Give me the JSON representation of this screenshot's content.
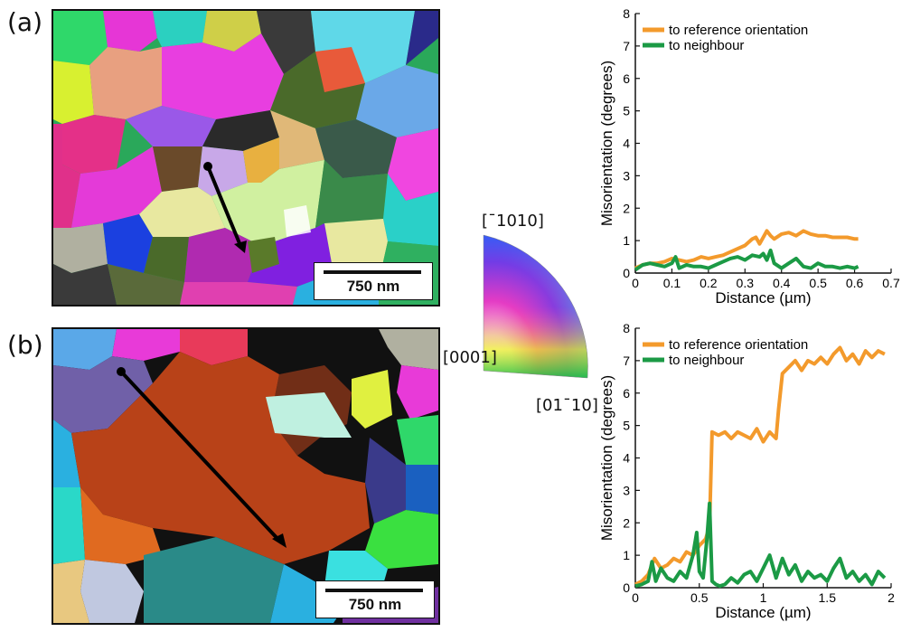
{
  "panels": {
    "a": {
      "label": "(a)",
      "scale_text": "750 nm"
    },
    "b": {
      "label": "(b)",
      "scale_text": "750 nm"
    }
  },
  "ipf_key": {
    "top": "[¯1010]",
    "left": "[0001]",
    "right": "[01¯10]"
  },
  "colors": {
    "reference": "#f39a2c",
    "neighbour": "#1b9a45"
  },
  "chart_data": [
    {
      "type": "line",
      "ylabel": "Misorientation (degrees)",
      "xlabel": "Distance (µm)",
      "xlim": [
        0,
        0.7
      ],
      "ylim": [
        0,
        8
      ],
      "xticks": [
        "0",
        "0.1",
        "0.2",
        "0.3",
        "0.4",
        "0.5",
        "0.6",
        "0.7"
      ],
      "yticks": [
        "0",
        "1",
        "2",
        "3",
        "4",
        "5",
        "6",
        "7",
        "8"
      ],
      "legend": [
        "to reference orientation",
        "to neighbour"
      ],
      "legend_position": "top-left",
      "series": [
        {
          "name": "to reference orientation",
          "x": [
            0,
            0.02,
            0.04,
            0.06,
            0.08,
            0.1,
            0.12,
            0.14,
            0.16,
            0.18,
            0.2,
            0.22,
            0.24,
            0.26,
            0.28,
            0.3,
            0.32,
            0.33,
            0.34,
            0.36,
            0.37,
            0.38,
            0.4,
            0.42,
            0.44,
            0.46,
            0.48,
            0.5,
            0.52,
            0.54,
            0.56,
            0.58,
            0.6,
            0.61
          ],
          "y": [
            0.15,
            0.25,
            0.3,
            0.3,
            0.35,
            0.45,
            0.4,
            0.35,
            0.4,
            0.5,
            0.45,
            0.5,
            0.55,
            0.65,
            0.75,
            0.85,
            1.05,
            1.1,
            0.9,
            1.3,
            1.15,
            1.05,
            1.2,
            1.25,
            1.15,
            1.3,
            1.2,
            1.15,
            1.15,
            1.1,
            1.1,
            1.1,
            1.05,
            1.05
          ]
        },
        {
          "name": "to neighbour",
          "x": [
            0,
            0.02,
            0.04,
            0.06,
            0.08,
            0.1,
            0.11,
            0.12,
            0.14,
            0.16,
            0.18,
            0.2,
            0.22,
            0.24,
            0.26,
            0.28,
            0.3,
            0.32,
            0.34,
            0.35,
            0.36,
            0.37,
            0.38,
            0.4,
            0.42,
            0.44,
            0.46,
            0.48,
            0.5,
            0.52,
            0.54,
            0.56,
            0.58,
            0.6,
            0.61
          ],
          "y": [
            0.1,
            0.25,
            0.3,
            0.25,
            0.2,
            0.3,
            0.5,
            0.15,
            0.25,
            0.2,
            0.2,
            0.15,
            0.25,
            0.35,
            0.45,
            0.5,
            0.4,
            0.55,
            0.5,
            0.6,
            0.4,
            0.7,
            0.3,
            0.15,
            0.3,
            0.45,
            0.2,
            0.15,
            0.3,
            0.2,
            0.2,
            0.15,
            0.2,
            0.15,
            0.2
          ]
        }
      ]
    },
    {
      "type": "line",
      "ylabel": "Misorientation (degrees)",
      "xlabel": "Distance (µm)",
      "xlim": [
        0,
        2
      ],
      "ylim": [
        0,
        8
      ],
      "xticks": [
        "0",
        "0.5",
        "1",
        "1.5",
        "2"
      ],
      "yticks": [
        "0",
        "1",
        "2",
        "3",
        "4",
        "5",
        "6",
        "7",
        "8"
      ],
      "legend": [
        "to reference orientation",
        "to neighbour"
      ],
      "legend_position": "top-left",
      "series": [
        {
          "name": "to reference orientation",
          "x": [
            0,
            0.05,
            0.1,
            0.15,
            0.2,
            0.25,
            0.3,
            0.35,
            0.4,
            0.45,
            0.5,
            0.55,
            0.58,
            0.6,
            0.65,
            0.7,
            0.75,
            0.8,
            0.85,
            0.9,
            0.95,
            1.0,
            1.05,
            1.1,
            1.12,
            1.15,
            1.2,
            1.25,
            1.3,
            1.35,
            1.4,
            1.45,
            1.5,
            1.55,
            1.6,
            1.65,
            1.7,
            1.75,
            1.8,
            1.85,
            1.9,
            1.95
          ],
          "y": [
            0.1,
            0.2,
            0.4,
            0.9,
            0.6,
            0.7,
            0.9,
            0.8,
            1.1,
            1.0,
            1.3,
            1.5,
            1.9,
            4.8,
            4.7,
            4.8,
            4.6,
            4.8,
            4.7,
            4.6,
            4.9,
            4.5,
            4.8,
            4.6,
            5.5,
            6.6,
            6.8,
            7.0,
            6.7,
            7.0,
            6.9,
            7.1,
            6.9,
            7.2,
            7.4,
            7.0,
            7.2,
            6.9,
            7.3,
            7.1,
            7.3,
            7.2
          ]
        },
        {
          "name": "to neighbour",
          "x": [
            0,
            0.05,
            0.1,
            0.13,
            0.16,
            0.2,
            0.25,
            0.3,
            0.35,
            0.4,
            0.45,
            0.48,
            0.5,
            0.53,
            0.56,
            0.58,
            0.6,
            0.63,
            0.66,
            0.7,
            0.75,
            0.8,
            0.85,
            0.9,
            0.95,
            1.0,
            1.05,
            1.1,
            1.15,
            1.2,
            1.25,
            1.3,
            1.35,
            1.4,
            1.45,
            1.5,
            1.55,
            1.6,
            1.65,
            1.7,
            1.75,
            1.8,
            1.85,
            1.9,
            1.95
          ],
          "y": [
            0.05,
            0.1,
            0.2,
            0.8,
            0.2,
            0.6,
            0.3,
            0.2,
            0.5,
            0.3,
            1.0,
            1.7,
            0.5,
            0.3,
            1.5,
            2.6,
            0.2,
            0.1,
            0.05,
            0.1,
            0.3,
            0.15,
            0.4,
            0.5,
            0.2,
            0.6,
            1.0,
            0.3,
            0.9,
            0.4,
            0.7,
            0.2,
            0.5,
            0.3,
            0.4,
            0.2,
            0.6,
            0.9,
            0.3,
            0.5,
            0.2,
            0.4,
            0.1,
            0.5,
            0.3
          ]
        }
      ]
    }
  ]
}
